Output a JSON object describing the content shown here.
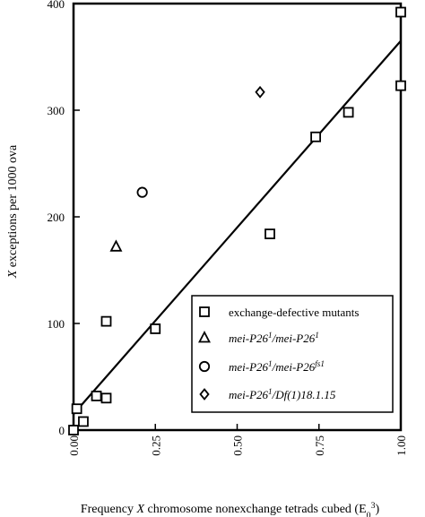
{
  "chart_data": {
    "type": "scatter",
    "xlabel_parts": [
      {
        "text": "Frequency ",
        "italic": false
      },
      {
        "text": "X",
        "italic": true
      },
      {
        "text": " chromosome nonexchange tetrads cubed (E",
        "italic": false
      },
      {
        "text": "0",
        "italic": false,
        "sub": true
      },
      {
        "text": "3",
        "italic": false,
        "sup": true
      },
      {
        "text": ")",
        "italic": false
      }
    ],
    "ylabel_parts": [
      {
        "text": "X",
        "italic": true
      },
      {
        "text": " exceptions per 1000 ova",
        "italic": false
      }
    ],
    "xlim": [
      0,
      1
    ],
    "ylim": [
      0,
      400
    ],
    "x_ticks": [
      {
        "value": 0.0,
        "label": "0.00"
      },
      {
        "value": 0.25,
        "label": "0.25"
      },
      {
        "value": 0.5,
        "label": "0.50"
      },
      {
        "value": 0.75,
        "label": "0.75"
      },
      {
        "value": 1.0,
        "label": "1.00"
      }
    ],
    "y_ticks": [
      {
        "value": 0,
        "label": "0"
      },
      {
        "value": 100,
        "label": "100"
      },
      {
        "value": 200,
        "label": "200"
      },
      {
        "value": 300,
        "label": "300"
      },
      {
        "value": 400,
        "label": "400"
      }
    ],
    "grid": false,
    "legend_position": "bottom-right",
    "series": [
      {
        "name": "exchange-defective mutants",
        "marker": "square",
        "points": [
          {
            "x": 0.0,
            "y": 0
          },
          {
            "x": 0.01,
            "y": 20
          },
          {
            "x": 0.03,
            "y": 8
          },
          {
            "x": 0.07,
            "y": 32
          },
          {
            "x": 0.1,
            "y": 30
          },
          {
            "x": 0.1,
            "y": 102
          },
          {
            "x": 0.25,
            "y": 95
          },
          {
            "x": 0.6,
            "y": 184
          },
          {
            "x": 0.74,
            "y": 275
          },
          {
            "x": 0.84,
            "y": 298
          },
          {
            "x": 1.0,
            "y": 323
          },
          {
            "x": 1.0,
            "y": 392
          }
        ]
      },
      {
        "name_parts": [
          {
            "text": "mei-P26",
            "italic": true
          },
          {
            "text": "1",
            "italic": true,
            "sup": true
          },
          {
            "text": "/mei-P26",
            "italic": true
          },
          {
            "text": "1",
            "italic": true,
            "sup": true
          }
        ],
        "marker": "triangle",
        "points": [
          {
            "x": 0.13,
            "y": 172
          }
        ]
      },
      {
        "name_parts": [
          {
            "text": "mei-P26",
            "italic": true
          },
          {
            "text": "1",
            "italic": true,
            "sup": true
          },
          {
            "text": "/mei-P26",
            "italic": true
          },
          {
            "text": "fs1",
            "italic": true,
            "sup": true
          }
        ],
        "marker": "circle",
        "points": [
          {
            "x": 0.21,
            "y": 223
          }
        ]
      },
      {
        "name_parts": [
          {
            "text": "mei-P26",
            "italic": true
          },
          {
            "text": "1",
            "italic": true,
            "sup": true
          },
          {
            "text": "/Df(1)18.1.15",
            "italic": true
          }
        ],
        "marker": "diamond",
        "points": [
          {
            "x": 0.57,
            "y": 317
          }
        ]
      }
    ],
    "regression_line": {
      "x": [
        0.0,
        1.0
      ],
      "y": [
        15,
        365
      ]
    }
  }
}
